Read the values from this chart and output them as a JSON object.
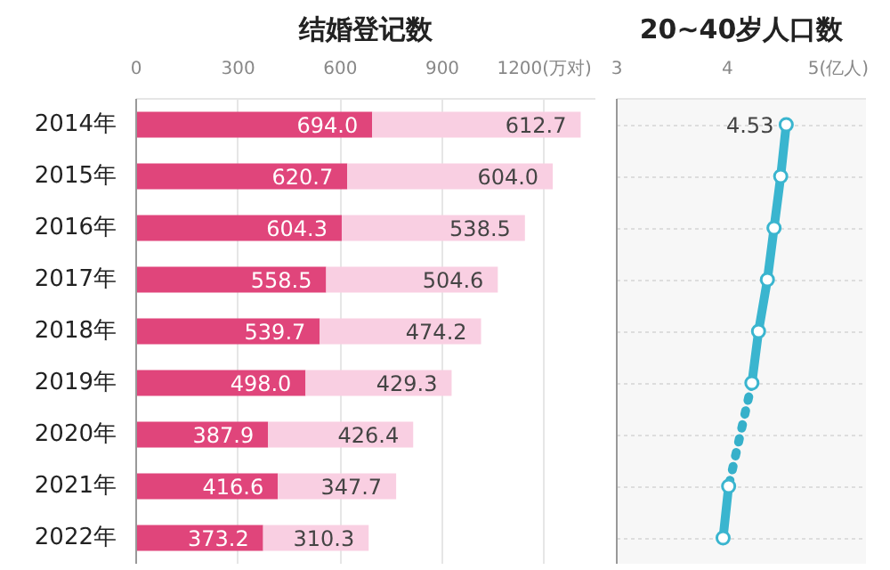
{
  "chart_data": [
    {
      "type": "bar",
      "title": "结婚登记数",
      "orientation": "horizontal",
      "stacked": true,
      "data_labels": true,
      "grid": "x",
      "categories": [
        "2014年",
        "2015年",
        "2016年",
        "2017年",
        "2018年",
        "2019年",
        "2020年",
        "2021年",
        "2022年"
      ],
      "series": [
        {
          "color": "#e0457b",
          "values": [
            694.0,
            620.7,
            604.3,
            558.5,
            539.7,
            498.0,
            387.9,
            416.6,
            373.2
          ],
          "value_labels": [
            "694.0",
            "620.7",
            "604.3",
            "558.5",
            "539.7",
            "498.0",
            "387.9",
            "416.6",
            "373.2"
          ]
        },
        {
          "color": "#f9cfe2",
          "values": [
            612.7,
            604.0,
            538.5,
            504.6,
            474.2,
            429.3,
            426.4,
            347.7,
            310.3
          ],
          "value_labels": [
            "612.7",
            "604.0",
            "538.5",
            "504.6",
            "474.2",
            "429.3",
            "426.4",
            "347.7",
            "310.3"
          ]
        }
      ],
      "xlim": [
        0,
        1350
      ],
      "xticks": [
        0,
        300,
        600,
        900,
        {
          "value": 1200,
          "label": "1200(万对)"
        }
      ]
    },
    {
      "type": "line",
      "title": "20~40岁人口数",
      "orientation": "horizontal",
      "grid": "y",
      "tick_labels": "x",
      "series": [
        {
          "color": "#3ab5cf",
          "line_style": "solid",
          "marker": "circle",
          "values": [
            4.53,
            4.48,
            4.42,
            4.36,
            4.28,
            4.22,
            null,
            4.01,
            3.96
          ],
          "value_labels": [
            "4.53",
            null,
            null,
            null,
            null,
            null,
            null,
            null,
            null
          ]
        },
        {
          "color": "#36b0ca",
          "line_style": "dotted",
          "marker": "none",
          "values": [
            null,
            null,
            null,
            null,
            null,
            4.22,
            null,
            4.01,
            null
          ]
        }
      ],
      "xlim": [
        3,
        5.25
      ],
      "xticks": [
        3,
        4,
        {
          "value": 5,
          "label": "5(亿人)"
        }
      ]
    }
  ]
}
